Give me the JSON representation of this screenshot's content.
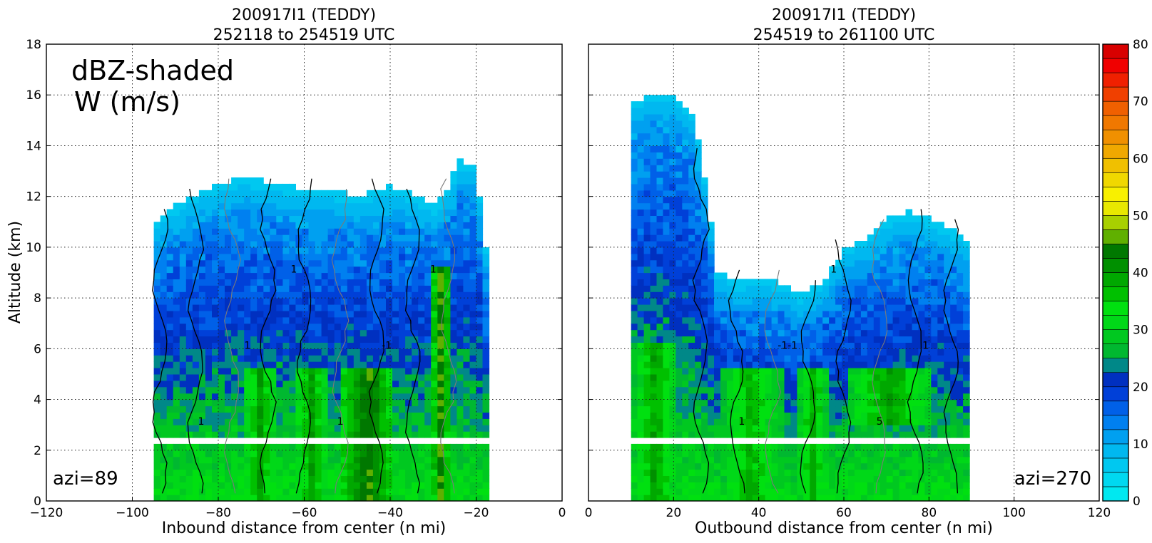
{
  "chart_data": [
    {
      "type": "heatmap",
      "title_line1": "200917I1 (TEDDY)",
      "title_line2": "252118 to 254519 UTC",
      "xlabel": "Inbound distance from center (n mi)",
      "ylabel": "Altitude (km)",
      "xlim": [
        -120,
        0
      ],
      "ylim": [
        0,
        18
      ],
      "xticks": [
        "−120",
        "−100",
        "−80",
        "−60",
        "−40",
        "−20",
        "0"
      ],
      "xtick_values": [
        -120,
        -100,
        -80,
        -60,
        -40,
        -20,
        0
      ],
      "yticks": [
        "0",
        "2",
        "4",
        "6",
        "8",
        "10",
        "12",
        "14",
        "16",
        "18"
      ],
      "ytick_values": [
        0,
        2,
        4,
        6,
        8,
        10,
        12,
        14,
        16,
        18
      ],
      "grid": true,
      "annotation_line1": "dBZ-shaded",
      "annotation_line2": "W (m/s)",
      "azimuth_label": "azi=89",
      "echo_top_km": [
        [
          -95,
          10.8
        ],
        [
          -90,
          11.5
        ],
        [
          -85,
          12.0
        ],
        [
          -80,
          12.3
        ],
        [
          -75,
          12.6
        ],
        [
          -70,
          12.5
        ],
        [
          -65,
          12.3
        ],
        [
          -60,
          12.2
        ],
        [
          -55,
          12.1
        ],
        [
          -50,
          12.0
        ],
        [
          -45,
          12.0
        ],
        [
          -40,
          12.3
        ],
        [
          -35,
          12.0
        ],
        [
          -30,
          11.5
        ],
        [
          -27,
          12.0
        ],
        [
          -24,
          13.3
        ],
        [
          -20,
          13.0
        ],
        [
          -17,
          9.0
        ]
      ],
      "core_regions": [
        {
          "x_from": -75,
          "x_to": -67,
          "z_from": 0,
          "z_to": 5,
          "peak_dbz": 40
        },
        {
          "x_from": -63,
          "x_to": -55,
          "z_from": 0,
          "z_to": 5,
          "peak_dbz": 40
        },
        {
          "x_from": -52,
          "x_to": -40,
          "z_from": 0,
          "z_to": 5,
          "peak_dbz": 45
        },
        {
          "x_from": -31,
          "x_to": -27,
          "z_from": 0,
          "z_to": 9,
          "peak_dbz": 45
        }
      ],
      "contour_labels": [
        "1",
        "1",
        "1",
        "1",
        "-1",
        "1"
      ]
    },
    {
      "type": "heatmap",
      "title_line1": "200917I1 (TEDDY)",
      "title_line2": "254519 to 261100 UTC",
      "xlabel": "Outbound distance from center (n mi)",
      "xlim": [
        0,
        120
      ],
      "ylim": [
        0,
        18
      ],
      "xticks": [
        "0",
        "20",
        "40",
        "60",
        "80",
        "100",
        "120"
      ],
      "xtick_values": [
        0,
        20,
        40,
        60,
        80,
        100,
        120
      ],
      "grid": true,
      "azimuth_label": "azi=270",
      "echo_top_km": [
        [
          10,
          15.5
        ],
        [
          15,
          16.0
        ],
        [
          20,
          15.8
        ],
        [
          25,
          15.0
        ],
        [
          28,
          12.0
        ],
        [
          30,
          9.0
        ],
        [
          35,
          8.5
        ],
        [
          40,
          8.6
        ],
        [
          45,
          8.5
        ],
        [
          50,
          8.0
        ],
        [
          55,
          8.5
        ],
        [
          60,
          9.8
        ],
        [
          65,
          10.2
        ],
        [
          70,
          11.0
        ],
        [
          75,
          11.3
        ],
        [
          80,
          11.0
        ],
        [
          85,
          10.6
        ],
        [
          90,
          10.0
        ]
      ],
      "core_regions": [
        {
          "x_from": 10,
          "x_to": 20,
          "z_from": 0,
          "z_to": 6,
          "peak_dbz": 40
        },
        {
          "x_from": 30,
          "x_to": 45,
          "z_from": 0,
          "z_to": 5,
          "peak_dbz": 38
        },
        {
          "x_from": 48,
          "x_to": 56,
          "z_from": 0,
          "z_to": 5,
          "peak_dbz": 38
        },
        {
          "x_from": 60,
          "x_to": 80,
          "z_from": 3,
          "z_to": 5,
          "peak_dbz": 40
        }
      ],
      "contour_labels": [
        "1",
        "-1-1",
        "1",
        "5",
        "1"
      ]
    }
  ],
  "colorbar": {
    "min": 0,
    "max": 80,
    "tick_labels": [
      "0",
      "10",
      "20",
      "30",
      "40",
      "50",
      "60",
      "70",
      "80"
    ],
    "tick_values": [
      0,
      10,
      20,
      30,
      40,
      50,
      60,
      70,
      80
    ],
    "step_dbz": 2.5,
    "colors": [
      "#00e8f0",
      "#00d8f0",
      "#00c8f0",
      "#00b8f0",
      "#00a0f0",
      "#0080f0",
      "#0060e8",
      "#0040d8",
      "#0030c0",
      "#008888",
      "#00b830",
      "#00c820",
      "#00d818",
      "#00e010",
      "#00c000",
      "#00a800",
      "#009000",
      "#007800",
      "#60b000",
      "#a8d000",
      "#e8e800",
      "#f8f000",
      "#f0d800",
      "#f0c000",
      "#f0a800",
      "#f09000",
      "#f07800",
      "#f06000",
      "#f04000",
      "#f02000",
      "#f00000",
      "#d80000",
      "#c00000",
      "#c00040",
      "#e00080",
      "#f000c0",
      "#e000f0",
      "#c040f0",
      "#a050d0",
      "#6030a0",
      "#402060",
      "#000000"
    ]
  }
}
